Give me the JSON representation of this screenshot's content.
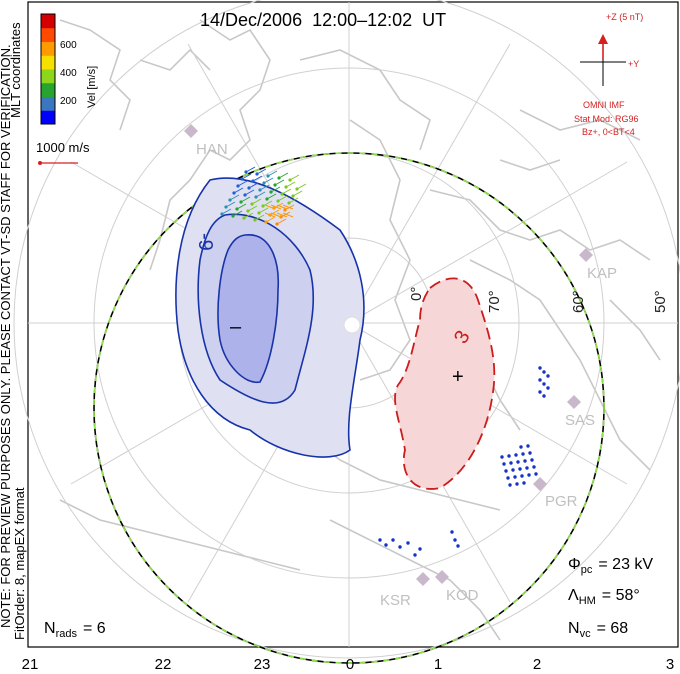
{
  "title": "14/Dec/2006  12:00–12:02  UT",
  "colorbar": {
    "ticks": [
      "600",
      "400",
      "200"
    ],
    "unit_label": "Vel [m/s]",
    "colors": [
      "#0000ff",
      "#3a77bf",
      "#27a32f",
      "#8dd61c",
      "#f5e000",
      "#ff9a00",
      "#ff4a00",
      "#d40000"
    ]
  },
  "coord_label": "MLT coordinates",
  "ref_vector": {
    "label": "1000 m/s",
    "color": "#d62020"
  },
  "side_note": "NOTE: FOR PREVIEW PURPOSES ONLY. PLEASE CONTACT VT-SD STAFF FOR VERIFICATION.",
  "fit_note": "FitOrder: 8, mapEX format",
  "imf": {
    "z_label": "+Z (5 nT)",
    "y_label": "+Y",
    "source": "OMNI IMF",
    "model": "Stat Mod: RG96",
    "condition": "Bz+, 0<BT<4",
    "color": "#d62020"
  },
  "latitudes": [
    "70°",
    "60°",
    "50°"
  ],
  "mlt_ticks": [
    "21",
    "22",
    "23",
    "0",
    "1",
    "2",
    "3"
  ],
  "radars": [
    "HAN",
    "KAP",
    "SAS",
    "PGR",
    "KSR",
    "KOD"
  ],
  "contours": {
    "negative_label": "-9",
    "positive_label": "3",
    "min_marker": "–",
    "max_marker": "+"
  },
  "stats": {
    "nrads_label": "N",
    "nrads_sub": "rads",
    "nrads_value": "= 6",
    "phi_label": "Φ",
    "phi_sub": "pc",
    "phi_value": "= 23 kV",
    "lambda_label": "Λ",
    "lambda_sub": "HM",
    "lambda_value": "= 58°",
    "nvc_label": "N",
    "nvc_sub": "vc",
    "nvc_value": "= 68"
  }
}
